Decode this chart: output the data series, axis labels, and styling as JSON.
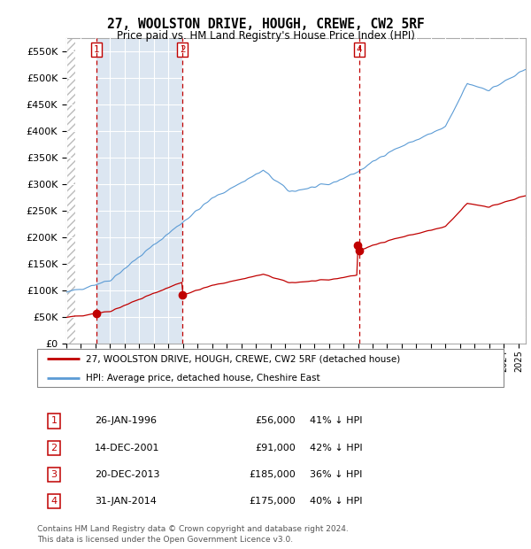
{
  "title": "27, WOOLSTON DRIVE, HOUGH, CREWE, CW2 5RF",
  "subtitle": "Price paid vs. HM Land Registry's House Price Index (HPI)",
  "ylim": [
    0,
    575000
  ],
  "yticks": [
    0,
    50000,
    100000,
    150000,
    200000,
    250000,
    300000,
    350000,
    400000,
    450000,
    500000,
    550000
  ],
  "ytick_labels": [
    "£0",
    "£50K",
    "£100K",
    "£150K",
    "£200K",
    "£250K",
    "£300K",
    "£350K",
    "£400K",
    "£450K",
    "£500K",
    "£550K"
  ],
  "xlim_start": 1994.0,
  "xlim_end": 2025.5,
  "sale_dates": [
    1996.07,
    2001.96,
    2013.97,
    2014.08
  ],
  "sale_prices": [
    56000,
    91000,
    185000,
    175000
  ],
  "sale_labels": [
    "1",
    "2",
    "3",
    "4"
  ],
  "vline_dates": [
    1996.07,
    2001.96,
    2014.08
  ],
  "vline_labels": [
    "1",
    "2",
    "4"
  ],
  "hpi_color": "#5b9bd5",
  "sale_color": "#c00000",
  "blue_shade_color": "#dce6f1",
  "legend_sale_label": "27, WOOLSTON DRIVE, HOUGH, CREWE, CW2 5RF (detached house)",
  "legend_hpi_label": "HPI: Average price, detached house, Cheshire East",
  "table_entries": [
    {
      "num": "1",
      "date": "26-JAN-1996",
      "price": "£56,000",
      "pct": "41% ↓ HPI"
    },
    {
      "num": "2",
      "date": "14-DEC-2001",
      "price": "£91,000",
      "pct": "42% ↓ HPI"
    },
    {
      "num": "3",
      "date": "20-DEC-2013",
      "price": "£185,000",
      "pct": "36% ↓ HPI"
    },
    {
      "num": "4",
      "date": "31-JAN-2014",
      "price": "£175,000",
      "pct": "40% ↓ HPI"
    }
  ],
  "footer": "Contains HM Land Registry data © Crown copyright and database right 2024.\nThis data is licensed under the Open Government Licence v3.0."
}
